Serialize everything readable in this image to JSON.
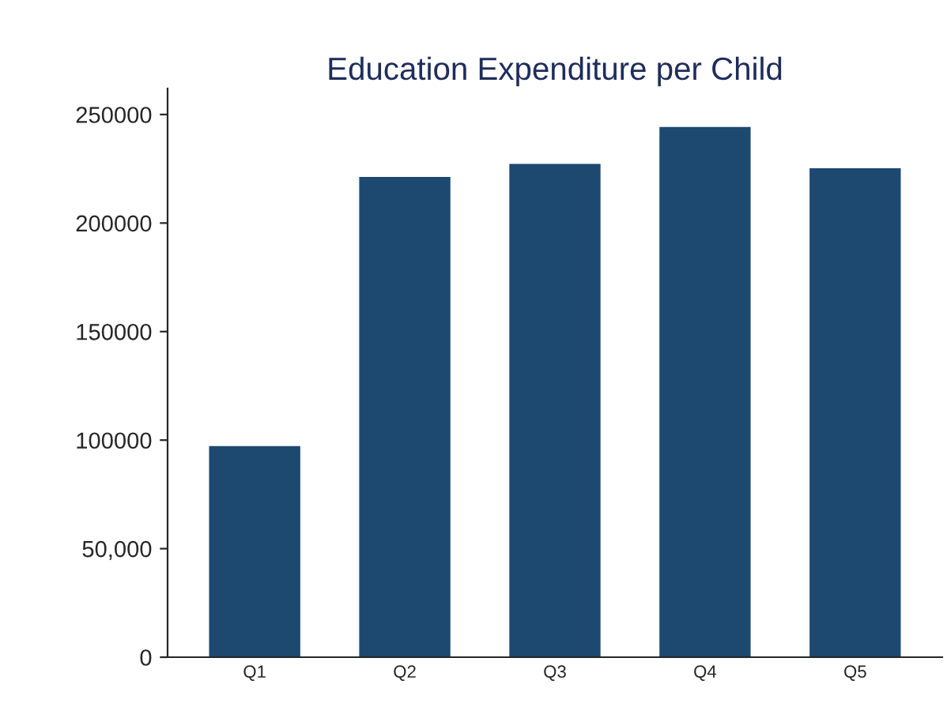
{
  "chart_data": {
    "type": "bar",
    "title": "Education Expenditure per Child",
    "categories": [
      "Q1",
      "Q2",
      "Q3",
      "Q4",
      "Q5"
    ],
    "values": [
      97000,
      221000,
      227000,
      244000,
      225000
    ],
    "color": "#1d4870",
    "ylim": [
      0,
      262000
    ],
    "yticks": [
      0,
      {
        "value": 50000,
        "label": "50,000"
      },
      100000,
      150000,
      200000,
      250000
    ],
    "grid": false
  }
}
